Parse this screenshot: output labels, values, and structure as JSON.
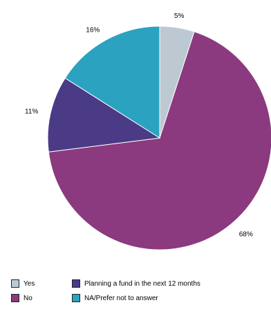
{
  "chart_data": {
    "type": "pie",
    "title": "",
    "slices": [
      {
        "label": "Yes",
        "value": 5,
        "display": "5%",
        "color": "#bcc9d3"
      },
      {
        "label": "No",
        "value": 68,
        "display": "68%",
        "color": "#8b3a7f"
      },
      {
        "label": "Planning a fund in the next 12 months",
        "value": 11,
        "display": "11%",
        "color": "#4b3a86"
      },
      {
        "label": "NA/Prefer not to answer",
        "value": 16,
        "display": "16%",
        "color": "#2ba2c0"
      }
    ],
    "draw_order": [
      0,
      1,
      2,
      3
    ],
    "start_angle_deg": 0,
    "direction": "clockwise",
    "legend": {
      "placement": "bottom",
      "order": [
        0,
        2,
        1,
        3
      ]
    }
  }
}
